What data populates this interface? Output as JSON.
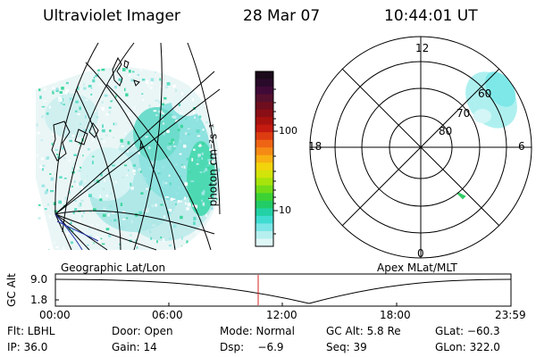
{
  "header": {
    "instrument": "Ultraviolet Imager",
    "date": "28 Mar 07",
    "time": "10:44:01 UT"
  },
  "colorbar": {
    "unit_label": "photon cm⁻²s⁻¹",
    "tick_labels": [
      "100",
      "10"
    ],
    "colors": [
      "#1a0a1a",
      "#2a0a2a",
      "#400a38",
      "#55102e",
      "#6e0e1e",
      "#8a0e16",
      "#a8120e",
      "#c41a10",
      "#dd3c10",
      "#ee6414",
      "#f58a14",
      "#f8b012",
      "#f2d40c",
      "#d2e40a",
      "#a6e40c",
      "#72dc18",
      "#3cd234",
      "#22cc66",
      "#22d2a6",
      "#40dcd2",
      "#7ce6e6",
      "#b6efef",
      "#dff7f7"
    ]
  },
  "map_panel": {
    "label": "Geographic Lat/Lon"
  },
  "polar_panel": {
    "label": "Apex MLat/MLT",
    "mlt_labels": {
      "top": "12",
      "left": "18",
      "right": "6",
      "bottom": "0"
    },
    "lat_labels": [
      "60",
      "70",
      "80"
    ]
  },
  "timeline": {
    "ylabel": "GC Alt",
    "ytick_labels": [
      "9.0",
      "1.8"
    ],
    "xtick_labels": [
      "00:00",
      "06:00",
      "12:00",
      "18:00",
      "23:59"
    ],
    "current_marker_color": "#dd2222"
  },
  "footer": {
    "filter": "Flt: LBHL",
    "door": "Door: Open",
    "mode": "Mode: Normal",
    "gc_alt": "GC Alt: 5.8 Re",
    "glat": "GLat: −60.3",
    "ip": "IP: 36.0",
    "gain": "Gain: 14",
    "dsp": "Dsp:    −6.9",
    "seq": "Seq: 39",
    "glon": "GLon: 322.0"
  }
}
